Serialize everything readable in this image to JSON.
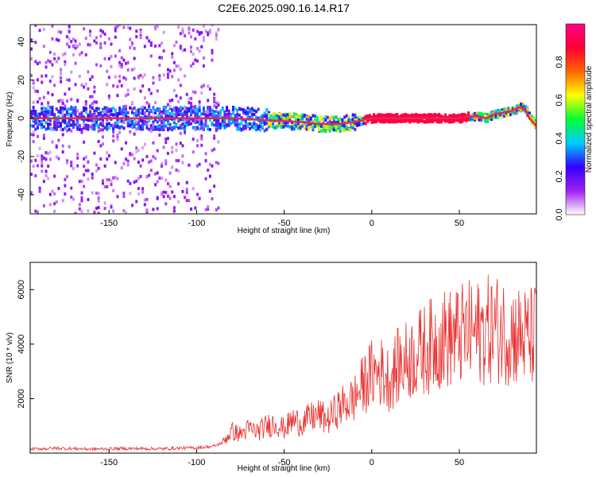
{
  "title": "C2E6.2025.090.16.14.R17",
  "colors": {
    "background": "#ffffff",
    "line": "#e8302e",
    "ridge": "#e3294a",
    "colorbar": [
      "#ffffff",
      "#a020f0",
      "#3300ff",
      "#00ccff",
      "#00ff33",
      "#ffff00",
      "#ff6600",
      "#ff0033",
      "#ff0088"
    ]
  },
  "chart_data": [
    {
      "type": "heatmap",
      "xlabel": "Height of straight line (km)",
      "ylabel": "Frequency (Hz)",
      "xlim": [
        -195,
        94
      ],
      "ylim": [
        -50,
        49
      ],
      "xticks": [
        -150,
        -100,
        -50,
        0,
        50
      ],
      "yticks": [
        -40,
        -20,
        0,
        20,
        40
      ],
      "colorbar": {
        "label": "Normalized spectral amplitude",
        "range": [
          0,
          1
        ],
        "ticks": [
          "0.0",
          "0.2",
          "0.4",
          "0.6",
          "0.8"
        ]
      },
      "ridge": {
        "x": [
          -195,
          -150,
          -100,
          -80,
          -60,
          -40,
          -30,
          -20,
          -10,
          0,
          10,
          20,
          30,
          40,
          50,
          55,
          60,
          65,
          70,
          75,
          80,
          85,
          88,
          90,
          94
        ],
        "y": [
          0,
          0,
          0,
          0,
          -1,
          -2,
          -3,
          -3,
          -2,
          0,
          0,
          0,
          0,
          0,
          0,
          1,
          1,
          0,
          2,
          3,
          4,
          6,
          4,
          0,
          -4
        ]
      }
    },
    {
      "type": "line",
      "xlabel": "Height of straight line (km)",
      "ylabel": "SNR (10 * v/v)",
      "xlim": [
        -195,
        94
      ],
      "ylim": [
        0,
        7000
      ],
      "xticks": [
        -150,
        -100,
        -50,
        0,
        50
      ],
      "yticks": [
        2000,
        4000,
        6000
      ],
      "series": [
        {
          "x": [
            -195,
            -180,
            -160,
            -140,
            -120,
            -100,
            -90,
            -85,
            -80,
            -75,
            -70,
            -65,
            -60,
            -55,
            -50,
            -45,
            -40,
            -35,
            -30,
            -25,
            -20,
            -15,
            -10,
            -5,
            0,
            5,
            10,
            15,
            20,
            25,
            30,
            35,
            40,
            45,
            50,
            55,
            60,
            65,
            70,
            75,
            80,
            85,
            90,
            94
          ],
          "y": [
            150,
            180,
            150,
            170,
            160,
            200,
            250,
            400,
            800,
            700,
            900,
            800,
            1000,
            1100,
            900,
            1200,
            1100,
            1300,
            1400,
            1200,
            1600,
            1800,
            2000,
            2500,
            2900,
            3000,
            2700,
            3200,
            3400,
            3600,
            3800,
            4000,
            4200,
            4200,
            4300,
            4400,
            4400,
            4500,
            4600,
            4500,
            4400,
            4300,
            4200,
            4400
          ]
        }
      ]
    }
  ]
}
